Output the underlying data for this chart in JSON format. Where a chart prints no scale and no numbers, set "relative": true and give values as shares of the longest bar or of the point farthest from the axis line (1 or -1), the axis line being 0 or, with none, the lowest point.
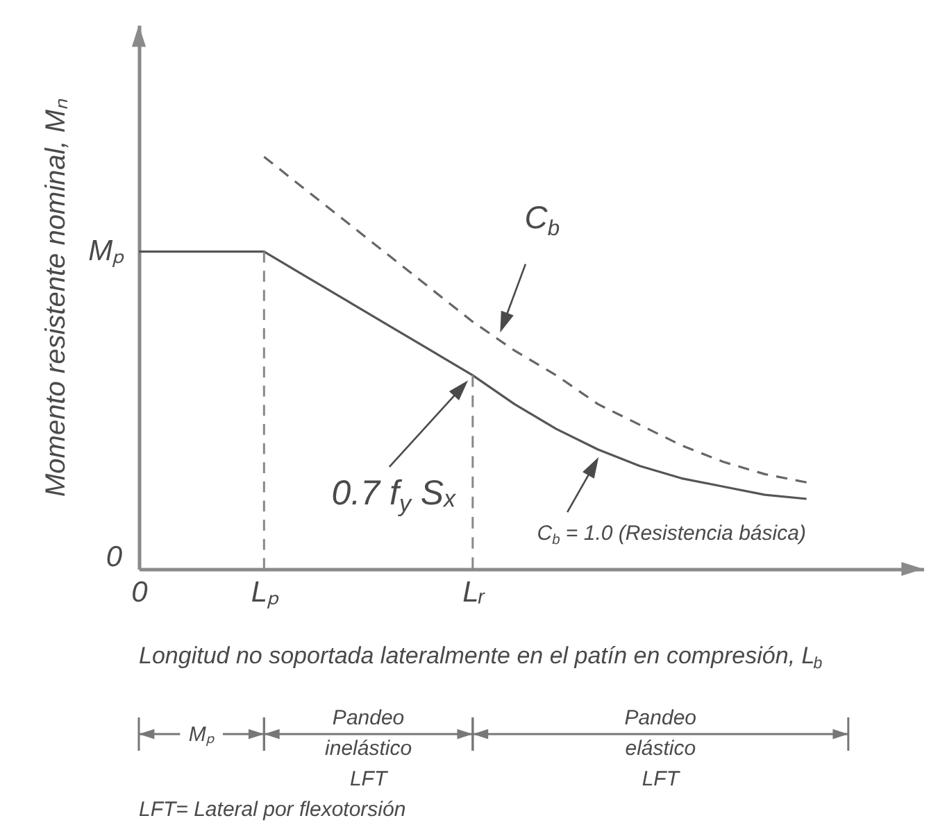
{
  "chart_data": {
    "type": "line",
    "relative": true,
    "xlabel": "Longitud no soportada lateralmente en el patín en compresión, L$_{b}$",
    "ylabel": "Momento resistente nominal, Mₙ",
    "categories": [
      "0",
      null,
      null,
      "Lₚ",
      null,
      null,
      null,
      null,
      "Lᵣ",
      null,
      null,
      null,
      null,
      null,
      null,
      null,
      null,
      null
    ],
    "series": [
      {
        "color": "#555555",
        "line_style": "solid",
        "values": [
          0.77,
          0.77,
          0.77,
          0.77,
          0.71,
          0.65,
          0.59,
          0.53,
          0.47,
          0.4,
          0.34,
          0.29,
          0.25,
          0.22,
          0.2,
          0.18,
          0.17,
          null
        ]
      },
      {
        "color": "#666666",
        "line_style": "dashed",
        "values": [
          null,
          null,
          null,
          1.0,
          0.92,
          0.84,
          0.76,
          0.68,
          0.6,
          0.53,
          0.47,
          0.4,
          0.35,
          0.3,
          0.26,
          0.23,
          0.21,
          null
        ]
      }
    ],
    "ref_lines": [
      {
        "axis": "x",
        "value": "Lₚ",
        "color": "#888888",
        "line_style": "dashed"
      },
      {
        "axis": "x",
        "value": "Lᵣ",
        "color": "#888888",
        "line_style": "dashed"
      }
    ],
    "annotations": [
      {
        "text": "Mₚ",
        "x": "0",
        "y": 0.77
      },
      "0",
      "C$_{b}$",
      "0.7 f$_{y}$ Sₓ",
      "C$_{b}$ = 1.0 (Resistencia básica)",
      "Mₚ",
      "Pandeo\ninelástico\nLFT",
      "Pandeo\nelástico\nLFT",
      "LFT= Lateral por flexotorsión"
    ]
  }
}
